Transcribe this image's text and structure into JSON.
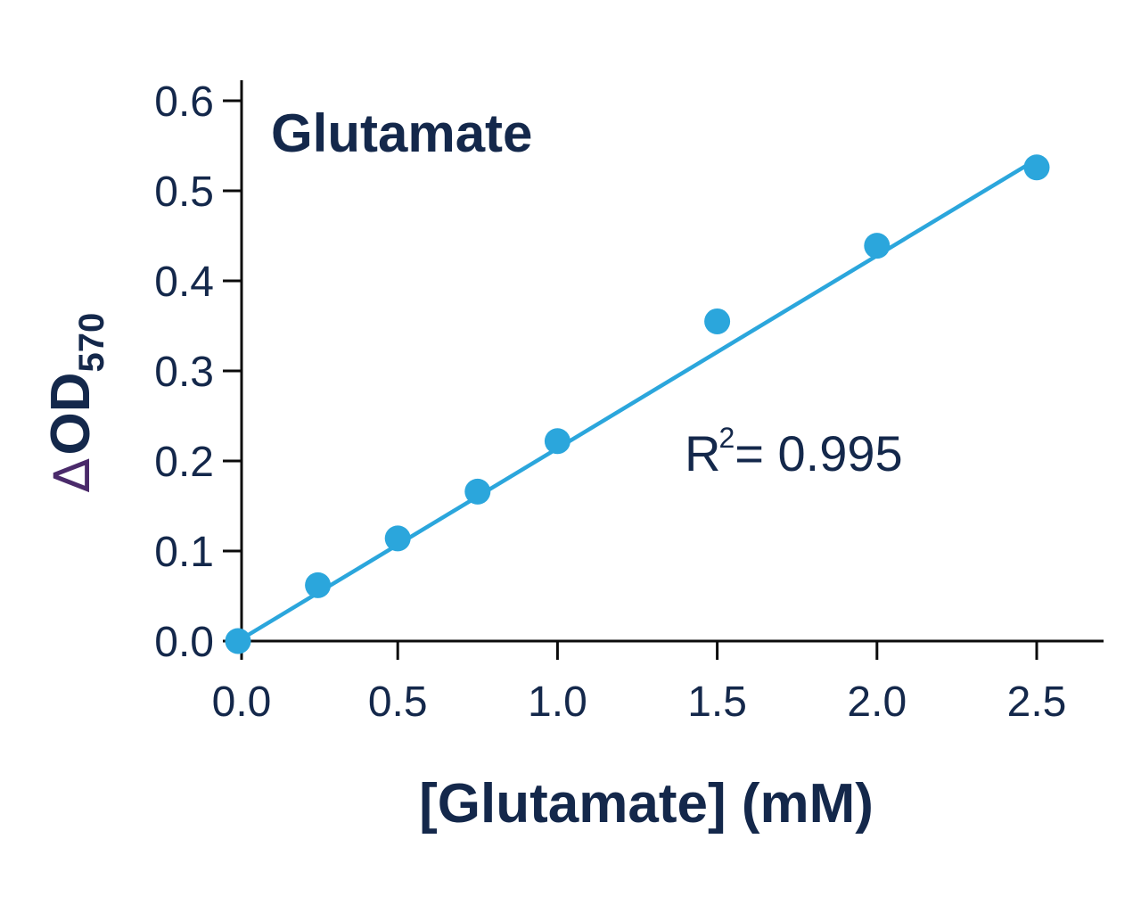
{
  "chart_data": {
    "type": "scatter",
    "title": "Glutamate",
    "xlabel": "[Glutamate] (mM)",
    "ylabel": {
      "delta": "∆",
      "main": "OD",
      "subscript": "570"
    },
    "xlim": [
      0,
      2.5
    ],
    "ylim": [
      0,
      0.6
    ],
    "x_ticks": [
      "0.0",
      "0.5",
      "1.0",
      "1.5",
      "2.0",
      "2.5"
    ],
    "y_ticks": [
      "0.0",
      "0.1",
      "0.2",
      "0.3",
      "0.4",
      "0.5",
      "0.6"
    ],
    "grid": false,
    "series": [
      {
        "points": [
          {
            "x": 0.0,
            "y": 0.0
          },
          {
            "x": 0.25,
            "y": 0.062
          },
          {
            "x": 0.5,
            "y": 0.114
          },
          {
            "x": 0.75,
            "y": 0.166
          },
          {
            "x": 1.0,
            "y": 0.222
          },
          {
            "x": 1.5,
            "y": 0.355
          },
          {
            "x": 2.0,
            "y": 0.439
          },
          {
            "x": 2.5,
            "y": 0.526
          }
        ],
        "color": "#2ba6dc"
      }
    ],
    "fit": {
      "type": "linear",
      "slope": 0.214,
      "intercept": 0.0,
      "r2_label": {
        "R": "R",
        "sup": "2",
        "rest": "= 0.995"
      },
      "color": "#2ba6dc"
    }
  }
}
